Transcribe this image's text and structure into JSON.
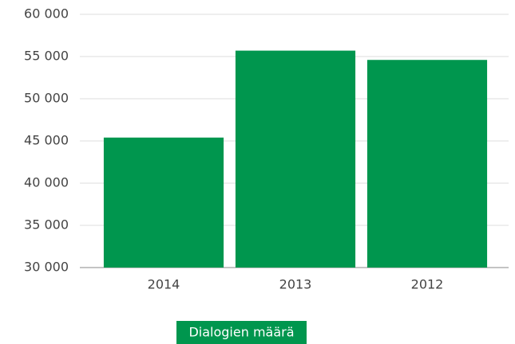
{
  "chart_data": {
    "type": "bar",
    "categories": [
      "2014",
      "2013",
      "2012"
    ],
    "series": [
      {
        "name": "Dialogien määrä",
        "color": "#00964e",
        "values": [
          45400,
          55700,
          54600
        ]
      }
    ],
    "ylim": [
      30000,
      60000
    ],
    "yticks": [
      {
        "value": 30000,
        "label": "30 000"
      },
      {
        "value": 35000,
        "label": "35 000"
      },
      {
        "value": 40000,
        "label": "40 000"
      },
      {
        "value": 45000,
        "label": "45 000"
      },
      {
        "value": 50000,
        "label": "50 000"
      },
      {
        "value": 55000,
        "label": "55 000"
      },
      {
        "value": 60000,
        "label": "60 000"
      }
    ],
    "grid": true,
    "legend": "bottom"
  }
}
